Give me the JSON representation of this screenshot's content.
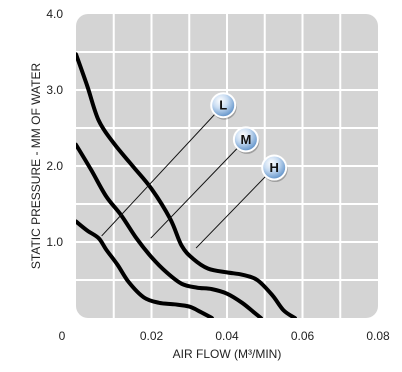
{
  "chart_data": {
    "type": "line",
    "xlabel": "AIR FLOW (M³/MIN)",
    "ylabel": "STATIC PRESSURE - MM OF WATER",
    "xlim": [
      0,
      0.08
    ],
    "ylim": [
      0,
      4.0
    ],
    "x_ticks": [
      "0",
      "0.02",
      "0.04",
      "0.06",
      "0.08"
    ],
    "y_ticks": [
      "4.0",
      "3.0",
      "2.0",
      "1.0"
    ],
    "grid": true,
    "series": [
      {
        "name": "L",
        "points": [
          [
            0,
            3.47
          ],
          [
            0.003,
            3.05
          ],
          [
            0.006,
            2.6
          ],
          [
            0.01,
            2.3
          ],
          [
            0.015,
            2.0
          ],
          [
            0.02,
            1.7
          ],
          [
            0.025,
            1.3
          ],
          [
            0.028,
            0.95
          ],
          [
            0.031,
            0.78
          ],
          [
            0.035,
            0.65
          ],
          [
            0.04,
            0.6
          ],
          [
            0.044,
            0.57
          ],
          [
            0.048,
            0.5
          ],
          [
            0.052,
            0.3
          ],
          [
            0.055,
            0.1
          ],
          [
            0.058,
            0.0
          ]
        ]
      },
      {
        "name": "M",
        "points": [
          [
            0,
            2.28
          ],
          [
            0.004,
            1.95
          ],
          [
            0.008,
            1.6
          ],
          [
            0.012,
            1.35
          ],
          [
            0.016,
            1.05
          ],
          [
            0.02,
            0.8
          ],
          [
            0.024,
            0.6
          ],
          [
            0.028,
            0.45
          ],
          [
            0.032,
            0.4
          ],
          [
            0.036,
            0.38
          ],
          [
            0.04,
            0.32
          ],
          [
            0.044,
            0.2
          ],
          [
            0.047,
            0.08
          ],
          [
            0.049,
            0.0
          ]
        ]
      },
      {
        "name": "H",
        "points": [
          [
            0,
            1.27
          ],
          [
            0.003,
            1.15
          ],
          [
            0.006,
            1.05
          ],
          [
            0.008,
            0.9
          ],
          [
            0.011,
            0.7
          ],
          [
            0.014,
            0.47
          ],
          [
            0.018,
            0.27
          ],
          [
            0.022,
            0.2
          ],
          [
            0.026,
            0.18
          ],
          [
            0.03,
            0.15
          ],
          [
            0.033,
            0.08
          ],
          [
            0.036,
            0.0
          ]
        ]
      }
    ],
    "annotations": [
      {
        "label": "L",
        "attach": [
          0.0068,
          1.08
        ],
        "badge": [
          0.039,
          2.8
        ]
      },
      {
        "label": "M",
        "attach": [
          0.0198,
          1.05
        ],
        "badge": [
          0.045,
          2.35
        ]
      },
      {
        "label": "H",
        "attach": [
          0.0318,
          0.92
        ],
        "badge": [
          0.0525,
          1.98
        ]
      }
    ]
  }
}
